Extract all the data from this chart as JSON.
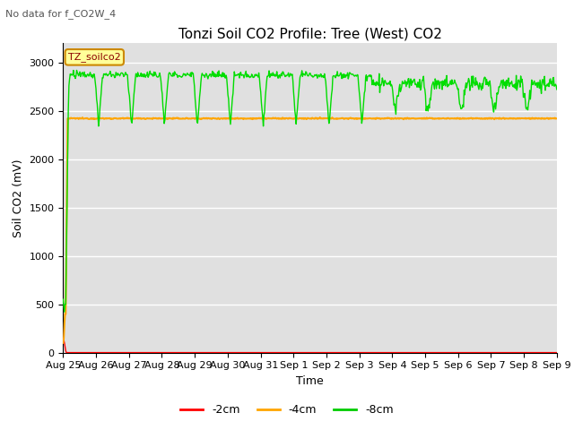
{
  "title": "Tonzi Soil CO2 Profile: Tree (West) CO2",
  "no_data_text": "No data for f_CO2W_4",
  "ylabel": "Soil CO2 (mV)",
  "xlabel": "Time",
  "ylim": [
    0,
    3200
  ],
  "yticks": [
    0,
    500,
    1000,
    1500,
    2000,
    2500,
    3000
  ],
  "legend_labels": [
    "-2cm",
    "-4cm",
    "-8cm"
  ],
  "legend_colors": [
    "#ff0000",
    "#ffa500",
    "#00cc00"
  ],
  "bg_color": "#e0e0e0",
  "line_color_2cm": "#ff0000",
  "line_color_4cm": "#ffa500",
  "line_color_8cm": "#00dd00",
  "orange_flat_value": 2420,
  "x_tick_labels": [
    "Aug 25",
    "Aug 26",
    "Aug 27",
    "Aug 28",
    "Aug 29",
    "Aug 30",
    "Aug 31",
    "Sep 1",
    "Sep 2",
    "Sep 3",
    "Sep 4",
    "Sep 5",
    "Sep 6",
    "Sep 7",
    "Sep 8",
    "Sep 9"
  ]
}
